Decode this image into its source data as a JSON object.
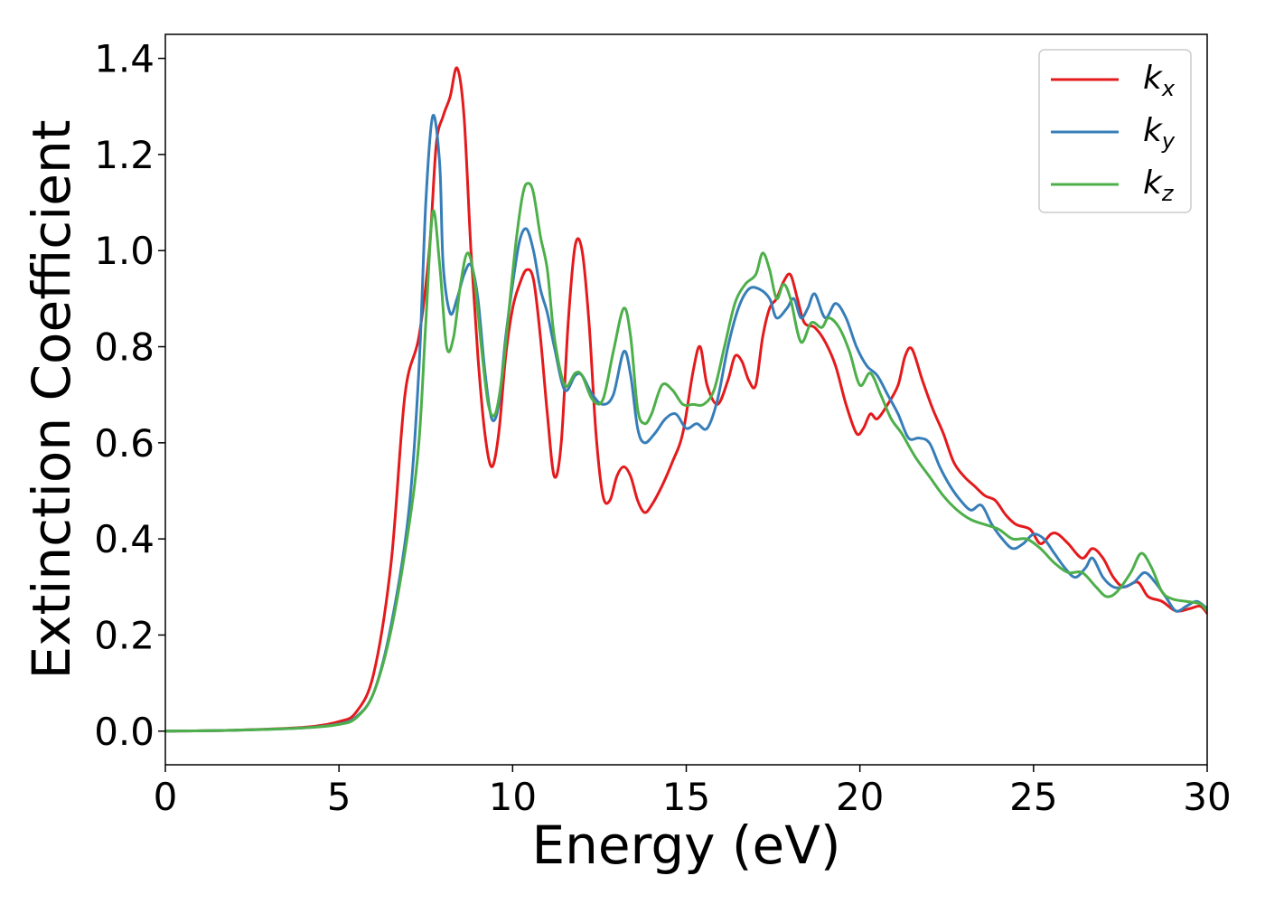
{
  "chart_data": {
    "type": "line",
    "title": "",
    "xlabel": "Energy (eV)",
    "ylabel": "Extinction Coefficient",
    "xlim": [
      0,
      30
    ],
    "ylim": [
      -0.07,
      1.45
    ],
    "xticks": [
      0,
      5,
      10,
      15,
      20,
      25,
      30
    ],
    "xtick_labels": [
      "0",
      "5",
      "10",
      "15",
      "20",
      "25",
      "30"
    ],
    "yticks": [
      0.0,
      0.2,
      0.4,
      0.6,
      0.8,
      1.0,
      1.2,
      1.4
    ],
    "ytick_labels": [
      "0.0",
      "0.2",
      "0.4",
      "0.6",
      "0.8",
      "1.0",
      "1.2",
      "1.4"
    ],
    "grid": false,
    "legend_position": "top-right",
    "series": [
      {
        "name": "kx",
        "legend_main": "k",
        "legend_sub": "x",
        "color": "#e41a1c",
        "points": [
          [
            0,
            0
          ],
          [
            2,
            0.002
          ],
          [
            4,
            0.008
          ],
          [
            5,
            0.02
          ],
          [
            5.5,
            0.04
          ],
          [
            6,
            0.12
          ],
          [
            6.5,
            0.35
          ],
          [
            6.9,
            0.7
          ],
          [
            7.3,
            0.82
          ],
          [
            7.6,
            1.0
          ],
          [
            7.8,
            1.22
          ],
          [
            8.0,
            1.28
          ],
          [
            8.2,
            1.32
          ],
          [
            8.4,
            1.38
          ],
          [
            8.6,
            1.28
          ],
          [
            8.8,
            1.0
          ],
          [
            9.0,
            0.78
          ],
          [
            9.2,
            0.62
          ],
          [
            9.4,
            0.55
          ],
          [
            9.6,
            0.62
          ],
          [
            9.8,
            0.78
          ],
          [
            10.0,
            0.88
          ],
          [
            10.2,
            0.93
          ],
          [
            10.4,
            0.96
          ],
          [
            10.6,
            0.94
          ],
          [
            10.8,
            0.82
          ],
          [
            11.0,
            0.66
          ],
          [
            11.2,
            0.53
          ],
          [
            11.4,
            0.6
          ],
          [
            11.6,
            0.85
          ],
          [
            11.8,
            1.01
          ],
          [
            12.0,
            1.0
          ],
          [
            12.2,
            0.85
          ],
          [
            12.4,
            0.62
          ],
          [
            12.6,
            0.49
          ],
          [
            12.8,
            0.48
          ],
          [
            13.0,
            0.53
          ],
          [
            13.2,
            0.55
          ],
          [
            13.4,
            0.53
          ],
          [
            13.6,
            0.48
          ],
          [
            13.8,
            0.455
          ],
          [
            14.0,
            0.47
          ],
          [
            14.3,
            0.51
          ],
          [
            14.6,
            0.56
          ],
          [
            14.9,
            0.62
          ],
          [
            15.2,
            0.75
          ],
          [
            15.4,
            0.8
          ],
          [
            15.6,
            0.72
          ],
          [
            15.9,
            0.68
          ],
          [
            16.2,
            0.73
          ],
          [
            16.4,
            0.78
          ],
          [
            16.6,
            0.77
          ],
          [
            16.8,
            0.73
          ],
          [
            17.0,
            0.72
          ],
          [
            17.2,
            0.82
          ],
          [
            17.4,
            0.88
          ],
          [
            17.6,
            0.9
          ],
          [
            17.8,
            0.935
          ],
          [
            18.0,
            0.95
          ],
          [
            18.2,
            0.9
          ],
          [
            18.4,
            0.85
          ],
          [
            18.7,
            0.84
          ],
          [
            19.0,
            0.81
          ],
          [
            19.3,
            0.76
          ],
          [
            19.6,
            0.68
          ],
          [
            19.9,
            0.62
          ],
          [
            20.1,
            0.63
          ],
          [
            20.3,
            0.66
          ],
          [
            20.5,
            0.65
          ],
          [
            20.8,
            0.68
          ],
          [
            21.1,
            0.72
          ],
          [
            21.3,
            0.78
          ],
          [
            21.5,
            0.795
          ],
          [
            21.8,
            0.73
          ],
          [
            22.1,
            0.67
          ],
          [
            22.4,
            0.62
          ],
          [
            22.7,
            0.56
          ],
          [
            23.0,
            0.53
          ],
          [
            23.3,
            0.51
          ],
          [
            23.6,
            0.49
          ],
          [
            23.9,
            0.48
          ],
          [
            24.2,
            0.45
          ],
          [
            24.5,
            0.43
          ],
          [
            24.9,
            0.42
          ],
          [
            25.2,
            0.39
          ],
          [
            25.5,
            0.41
          ],
          [
            25.7,
            0.41
          ],
          [
            26.0,
            0.39
          ],
          [
            26.4,
            0.36
          ],
          [
            26.7,
            0.38
          ],
          [
            27.0,
            0.36
          ],
          [
            27.3,
            0.32
          ],
          [
            27.6,
            0.3
          ],
          [
            28.0,
            0.31
          ],
          [
            28.3,
            0.28
          ],
          [
            28.7,
            0.27
          ],
          [
            29.1,
            0.25
          ],
          [
            29.5,
            0.255
          ],
          [
            29.8,
            0.26
          ],
          [
            30.0,
            0.245
          ]
        ]
      },
      {
        "name": "ky",
        "legend_main": "k",
        "legend_sub": "y",
        "color": "#377eb8",
        "points": [
          [
            0,
            0
          ],
          [
            2,
            0.002
          ],
          [
            4,
            0.007
          ],
          [
            5,
            0.015
          ],
          [
            5.5,
            0.03
          ],
          [
            6,
            0.08
          ],
          [
            6.5,
            0.22
          ],
          [
            7.0,
            0.45
          ],
          [
            7.3,
            0.75
          ],
          [
            7.5,
            1.1
          ],
          [
            7.7,
            1.28
          ],
          [
            7.9,
            1.18
          ],
          [
            8.0,
            0.97
          ],
          [
            8.2,
            0.87
          ],
          [
            8.4,
            0.9
          ],
          [
            8.6,
            0.95
          ],
          [
            8.8,
            0.97
          ],
          [
            9.0,
            0.9
          ],
          [
            9.2,
            0.75
          ],
          [
            9.4,
            0.65
          ],
          [
            9.6,
            0.68
          ],
          [
            9.8,
            0.82
          ],
          [
            10.0,
            0.93
          ],
          [
            10.2,
            1.02
          ],
          [
            10.4,
            1.045
          ],
          [
            10.6,
            1.0
          ],
          [
            10.8,
            0.92
          ],
          [
            11.0,
            0.87
          ],
          [
            11.2,
            0.8
          ],
          [
            11.5,
            0.71
          ],
          [
            11.8,
            0.74
          ],
          [
            12.0,
            0.74
          ],
          [
            12.3,
            0.7
          ],
          [
            12.6,
            0.68
          ],
          [
            12.9,
            0.7
          ],
          [
            13.2,
            0.79
          ],
          [
            13.4,
            0.74
          ],
          [
            13.6,
            0.63
          ],
          [
            13.8,
            0.6
          ],
          [
            14.1,
            0.62
          ],
          [
            14.4,
            0.65
          ],
          [
            14.7,
            0.66
          ],
          [
            15.0,
            0.63
          ],
          [
            15.3,
            0.64
          ],
          [
            15.6,
            0.63
          ],
          [
            15.9,
            0.69
          ],
          [
            16.2,
            0.8
          ],
          [
            16.5,
            0.88
          ],
          [
            16.8,
            0.92
          ],
          [
            17.1,
            0.92
          ],
          [
            17.4,
            0.9
          ],
          [
            17.6,
            0.86
          ],
          [
            17.9,
            0.88
          ],
          [
            18.1,
            0.9
          ],
          [
            18.3,
            0.86
          ],
          [
            18.5,
            0.88
          ],
          [
            18.7,
            0.91
          ],
          [
            19.0,
            0.86
          ],
          [
            19.3,
            0.89
          ],
          [
            19.6,
            0.86
          ],
          [
            19.9,
            0.8
          ],
          [
            20.2,
            0.76
          ],
          [
            20.5,
            0.74
          ],
          [
            20.8,
            0.7
          ],
          [
            21.1,
            0.66
          ],
          [
            21.4,
            0.61
          ],
          [
            21.7,
            0.61
          ],
          [
            22.0,
            0.6
          ],
          [
            22.3,
            0.55
          ],
          [
            22.6,
            0.51
          ],
          [
            22.9,
            0.48
          ],
          [
            23.2,
            0.46
          ],
          [
            23.5,
            0.47
          ],
          [
            23.8,
            0.43
          ],
          [
            24.1,
            0.4
          ],
          [
            24.4,
            0.38
          ],
          [
            24.7,
            0.39
          ],
          [
            25.0,
            0.41
          ],
          [
            25.3,
            0.4
          ],
          [
            25.6,
            0.37
          ],
          [
            25.9,
            0.34
          ],
          [
            26.2,
            0.32
          ],
          [
            26.5,
            0.34
          ],
          [
            26.7,
            0.36
          ],
          [
            27.0,
            0.32
          ],
          [
            27.3,
            0.3
          ],
          [
            27.6,
            0.3
          ],
          [
            27.9,
            0.31
          ],
          [
            28.2,
            0.33
          ],
          [
            28.5,
            0.31
          ],
          [
            28.8,
            0.28
          ],
          [
            29.1,
            0.25
          ],
          [
            29.4,
            0.26
          ],
          [
            29.7,
            0.27
          ],
          [
            30.0,
            0.255
          ]
        ]
      },
      {
        "name": "kz",
        "legend_main": "k",
        "legend_sub": "z",
        "color": "#4daf4a",
        "points": [
          [
            0,
            0
          ],
          [
            2,
            0.002
          ],
          [
            4,
            0.007
          ],
          [
            5,
            0.014
          ],
          [
            5.5,
            0.028
          ],
          [
            6,
            0.08
          ],
          [
            6.5,
            0.21
          ],
          [
            7.0,
            0.42
          ],
          [
            7.3,
            0.6
          ],
          [
            7.5,
            0.85
          ],
          [
            7.7,
            1.08
          ],
          [
            7.9,
            0.97
          ],
          [
            8.1,
            0.8
          ],
          [
            8.3,
            0.82
          ],
          [
            8.5,
            0.93
          ],
          [
            8.7,
            0.995
          ],
          [
            8.9,
            0.94
          ],
          [
            9.1,
            0.8
          ],
          [
            9.3,
            0.68
          ],
          [
            9.5,
            0.66
          ],
          [
            9.7,
            0.74
          ],
          [
            9.9,
            0.88
          ],
          [
            10.1,
            1.02
          ],
          [
            10.3,
            1.12
          ],
          [
            10.45,
            1.14
          ],
          [
            10.6,
            1.12
          ],
          [
            10.8,
            1.03
          ],
          [
            11.0,
            0.96
          ],
          [
            11.2,
            0.82
          ],
          [
            11.5,
            0.72
          ],
          [
            11.8,
            0.745
          ],
          [
            12.0,
            0.74
          ],
          [
            12.3,
            0.69
          ],
          [
            12.6,
            0.69
          ],
          [
            12.9,
            0.79
          ],
          [
            13.2,
            0.88
          ],
          [
            13.4,
            0.82
          ],
          [
            13.6,
            0.67
          ],
          [
            13.8,
            0.64
          ],
          [
            14.0,
            0.66
          ],
          [
            14.3,
            0.72
          ],
          [
            14.6,
            0.71
          ],
          [
            14.9,
            0.68
          ],
          [
            15.2,
            0.68
          ],
          [
            15.5,
            0.68
          ],
          [
            15.8,
            0.71
          ],
          [
            16.1,
            0.8
          ],
          [
            16.4,
            0.89
          ],
          [
            16.7,
            0.93
          ],
          [
            17.0,
            0.95
          ],
          [
            17.2,
            0.995
          ],
          [
            17.4,
            0.96
          ],
          [
            17.6,
            0.9
          ],
          [
            17.8,
            0.93
          ],
          [
            18.0,
            0.9
          ],
          [
            18.3,
            0.81
          ],
          [
            18.6,
            0.85
          ],
          [
            18.9,
            0.84
          ],
          [
            19.1,
            0.86
          ],
          [
            19.4,
            0.84
          ],
          [
            19.7,
            0.79
          ],
          [
            20.0,
            0.72
          ],
          [
            20.3,
            0.745
          ],
          [
            20.6,
            0.7
          ],
          [
            20.9,
            0.65
          ],
          [
            21.2,
            0.62
          ],
          [
            21.6,
            0.57
          ],
          [
            22.0,
            0.53
          ],
          [
            22.4,
            0.49
          ],
          [
            22.8,
            0.46
          ],
          [
            23.2,
            0.44
          ],
          [
            23.6,
            0.43
          ],
          [
            24.0,
            0.42
          ],
          [
            24.4,
            0.4
          ],
          [
            24.8,
            0.4
          ],
          [
            25.2,
            0.38
          ],
          [
            25.6,
            0.35
          ],
          [
            26.0,
            0.33
          ],
          [
            26.4,
            0.33
          ],
          [
            26.8,
            0.3
          ],
          [
            27.1,
            0.28
          ],
          [
            27.4,
            0.29
          ],
          [
            27.8,
            0.33
          ],
          [
            28.1,
            0.37
          ],
          [
            28.4,
            0.34
          ],
          [
            28.7,
            0.29
          ],
          [
            29.0,
            0.275
          ],
          [
            29.4,
            0.27
          ],
          [
            29.8,
            0.265
          ],
          [
            30.0,
            0.25
          ]
        ]
      }
    ]
  }
}
